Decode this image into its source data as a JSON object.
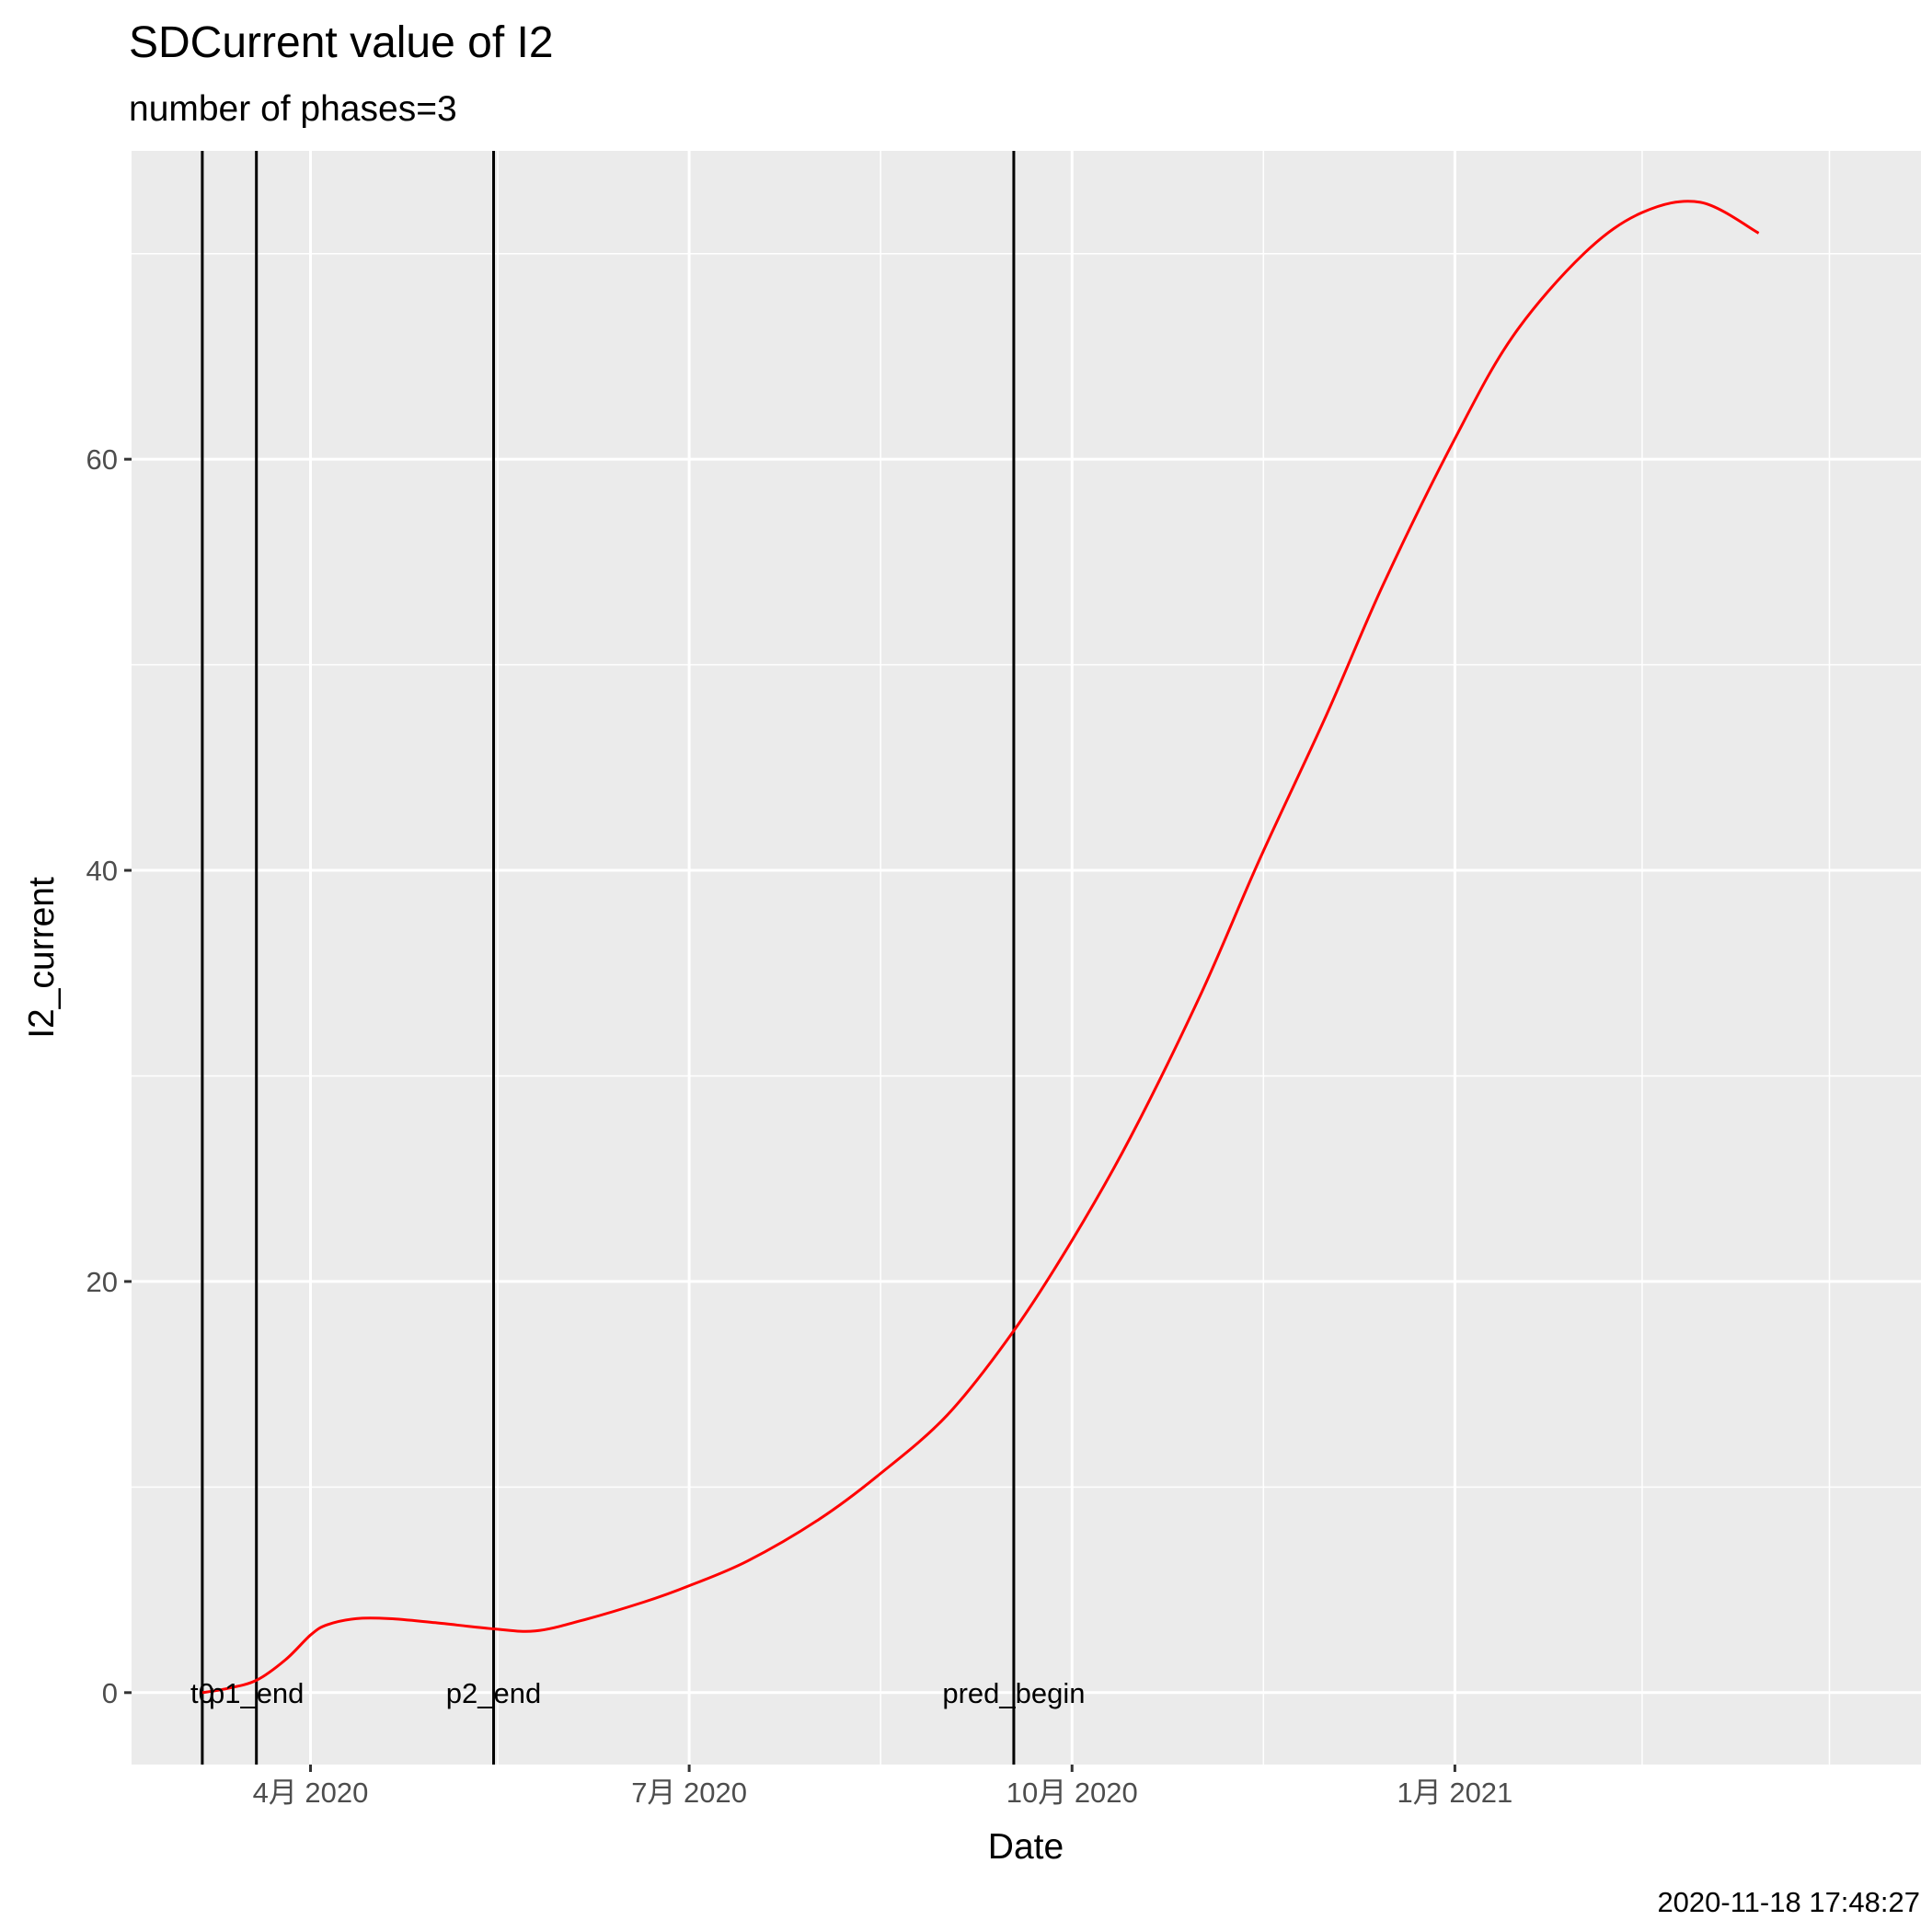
{
  "chart_data": {
    "type": "line",
    "title": "SDCurrent value of I2",
    "subtitle": "number of phases=3",
    "xlabel": "Date",
    "ylabel": "I2_current",
    "caption": "2020-11-18 17:48:27",
    "xlim": [
      "2020-02-18",
      "2021-04-23"
    ],
    "ylim": [
      -3.5,
      75
    ],
    "x_ticks": [
      {
        "date": "2020-04-01",
        "label": "4月 2020"
      },
      {
        "date": "2020-07-01",
        "label": "7月 2020"
      },
      {
        "date": "2020-10-01",
        "label": "10月 2020"
      },
      {
        "date": "2021-01-01",
        "label": "1月 2021"
      }
    ],
    "x_minor_ticks": [
      "2020-02-15",
      "2020-05-16",
      "2020-08-16",
      "2020-11-16",
      "2021-02-15",
      "2021-04-01"
    ],
    "y_ticks": [
      0,
      20,
      40,
      60
    ],
    "y_minor_ticks": [
      10,
      30,
      50,
      70
    ],
    "grid": true,
    "vlines": [
      {
        "date": "2020-03-06",
        "label": "t0"
      },
      {
        "date": "2020-03-19",
        "label": "p1_end"
      },
      {
        "date": "2020-05-15",
        "label": "p2_end"
      },
      {
        "date": "2020-09-17",
        "label": "pred_begin"
      }
    ],
    "series": [
      {
        "color": "#ff0000",
        "x": [
          "2020-03-06",
          "2020-03-12",
          "2020-03-19",
          "2020-03-26",
          "2020-04-01",
          "2020-04-05",
          "2020-04-12",
          "2020-04-20",
          "2020-05-01",
          "2020-05-15",
          "2020-05-25",
          "2020-06-05",
          "2020-06-20",
          "2020-07-01",
          "2020-07-15",
          "2020-08-01",
          "2020-08-15",
          "2020-09-01",
          "2020-09-17",
          "2020-10-01",
          "2020-10-15",
          "2020-11-01",
          "2020-11-15",
          "2020-12-01",
          "2020-12-15",
          "2021-01-01",
          "2021-01-15",
          "2021-02-01",
          "2021-02-15",
          "2021-03-01",
          "2021-03-15"
        ],
        "y": [
          0.0,
          0.2,
          0.6,
          1.6,
          2.8,
          3.3,
          3.6,
          3.6,
          3.4,
          3.1,
          3.0,
          3.5,
          4.4,
          5.2,
          6.4,
          8.4,
          10.5,
          13.5,
          17.6,
          22.0,
          27.0,
          34.0,
          40.5,
          47.5,
          54.0,
          61.0,
          66.0,
          70.0,
          72.0,
          72.5,
          71.0
        ]
      }
    ]
  }
}
